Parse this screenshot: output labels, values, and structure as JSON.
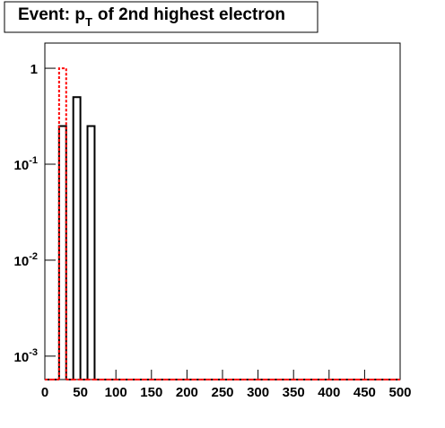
{
  "chart_data": {
    "type": "histogram",
    "title": "Event: p",
    "title_subscript": "T",
    "title_rest": "of 2nd highest electron",
    "bins": [
      0,
      10,
      20,
      30,
      40,
      50,
      60,
      70,
      80,
      90,
      100,
      110,
      120,
      130,
      140,
      150,
      160,
      170,
      180,
      190,
      200,
      210,
      220,
      230,
      240,
      250,
      260,
      270,
      280,
      290,
      300,
      310,
      320,
      330,
      340,
      350,
      360,
      370,
      380,
      390,
      400,
      410,
      420,
      430,
      440,
      450,
      460,
      470,
      480,
      490,
      500
    ],
    "series": [
      {
        "color": "#000000",
        "values": [
          0,
          0,
          0.25,
          0,
          0.5,
          0,
          0.25,
          0,
          0,
          0,
          0,
          0,
          0,
          0,
          0,
          0,
          0,
          0,
          0,
          0,
          0,
          0,
          0,
          0,
          0,
          0,
          0,
          0,
          0,
          0,
          0,
          0,
          0,
          0,
          0,
          0,
          0,
          0,
          0,
          0,
          0,
          0,
          0,
          0,
          0,
          0,
          0,
          0,
          0,
          0
        ]
      },
      {
        "color": "#ff0000",
        "dashed": true,
        "values": [
          0,
          0,
          1,
          0,
          0,
          0,
          0,
          0,
          0,
          0,
          0,
          0,
          0,
          0,
          0,
          0,
          0,
          0,
          0,
          0,
          0,
          0,
          0,
          0,
          0,
          0,
          0,
          0,
          0,
          0,
          0,
          0,
          0,
          0,
          0,
          0,
          0,
          0,
          0,
          0,
          0,
          0,
          0,
          0,
          0,
          0,
          0,
          0,
          0,
          0
        ]
      }
    ],
    "xlim": [
      0,
      500
    ],
    "xticks": [
      0,
      50,
      100,
      150,
      200,
      250,
      300,
      350,
      400,
      450,
      500
    ],
    "ylim": [
      0.00057,
      1.83
    ],
    "log_y": true,
    "yticks": [
      1,
      {
        "value": 0.1,
        "label": "10",
        "exponent": "-1"
      },
      {
        "value": 0.01,
        "label": "10",
        "exponent": "-2"
      },
      {
        "value": 0.001,
        "label": "10",
        "exponent": "-3"
      }
    ]
  }
}
